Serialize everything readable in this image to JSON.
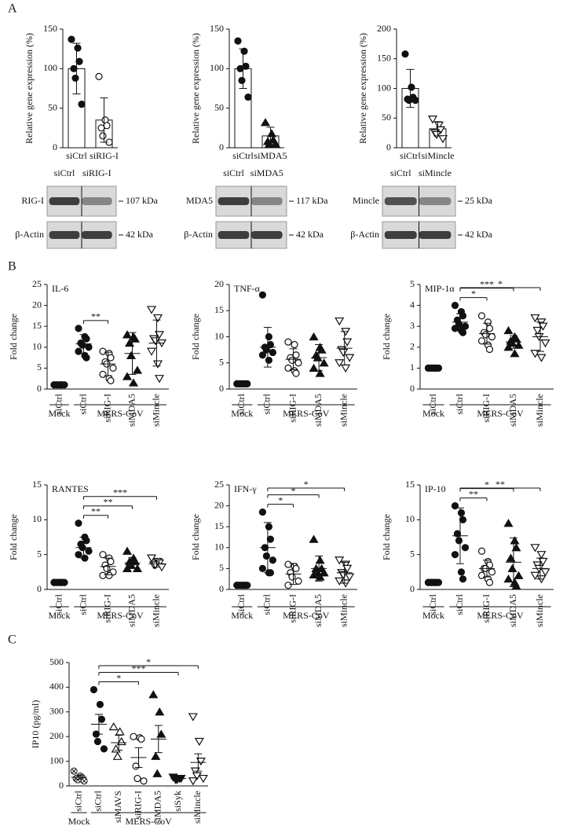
{
  "panel_labels": [
    "A",
    "B",
    "C"
  ],
  "blots": [
    {
      "lanes": [
        "siCtrl",
        "siRIG-I"
      ],
      "rows": [
        {
          "protein": "RIG-I",
          "size": "107 kDa"
        },
        {
          "protein": "β-Actin",
          "size": "42 kDa"
        }
      ]
    },
    {
      "lanes": [
        "siCtrl",
        "siMDA5"
      ],
      "rows": [
        {
          "protein": "MDA5",
          "size": "117 kDa"
        },
        {
          "protein": "β-Actin",
          "size": "42 kDa"
        }
      ]
    },
    {
      "lanes": [
        "siCtrl",
        "siMincle"
      ],
      "rows": [
        {
          "protein": "Mincle",
          "size": "25 kDa"
        },
        {
          "protein": "β-Actin",
          "size": "42 kDa"
        }
      ]
    }
  ],
  "chart_data": [
    {
      "type": "bar",
      "y_label": "Relative gene expression (%)",
      "ylim": [
        0,
        150
      ],
      "yticks": [
        0,
        50,
        100,
        150
      ],
      "categories": [
        "siCtrl",
        "siRIG-I"
      ],
      "markers": [
        "circle-filled",
        "circle-open"
      ],
      "points": [
        [
          137,
          126,
          109,
          100,
          88,
          55
        ],
        [
          90,
          35,
          28,
          25,
          15,
          7
        ]
      ],
      "means": [
        100,
        35
      ],
      "errors": [
        32,
        28
      ],
      "color": "#111111"
    },
    {
      "type": "bar",
      "y_label": "Relative gene expression (%)",
      "ylim": [
        0,
        150
      ],
      "yticks": [
        0,
        50,
        100,
        150
      ],
      "categories": [
        "siCtrl",
        "siMDA5"
      ],
      "markers": [
        "circle-filled",
        "triangle-filled"
      ],
      "points": [
        [
          135,
          122,
          103,
          100,
          85,
          64
        ],
        [
          32,
          18,
          10,
          8,
          5,
          5
        ]
      ],
      "means": [
        100,
        15
      ],
      "errors": [
        25,
        11
      ],
      "color": "#111111"
    },
    {
      "type": "bar",
      "y_label": "Relative gene expression (%)",
      "ylim": [
        0,
        200
      ],
      "yticks": [
        0,
        50,
        100,
        150,
        200
      ],
      "categories": [
        "siCtrl",
        "siMincle"
      ],
      "markers": [
        "circle-filled",
        "down-triangle-open"
      ],
      "points": [
        [
          158,
          102,
          85,
          82,
          80,
          80
        ],
        [
          48,
          38,
          30,
          25,
          22,
          15
        ]
      ],
      "means": [
        100,
        32
      ],
      "errors": [
        32,
        12
      ],
      "color": "#111111"
    },
    {
      "type": "dot",
      "title": "IL-6",
      "y_label": "Fold change",
      "ylim": [
        0,
        25
      ],
      "yticks": [
        0,
        5,
        10,
        15,
        20,
        25
      ],
      "categories": [
        "siCtrl",
        "siCtrl",
        "siRIG-I",
        "siMDA5",
        "siMincle"
      ],
      "markers": [
        "circle-filled",
        "circle-filled",
        "circle-open",
        "triangle-filled",
        "down-triangle-open"
      ],
      "points": [
        [
          1,
          1,
          1,
          1,
          1,
          1,
          1,
          1
        ],
        [
          14.5,
          12.5,
          12,
          11,
          10.5,
          10,
          9,
          8,
          7.5
        ],
        [
          9,
          8.5,
          7.5,
          6.5,
          6,
          5,
          3.5,
          2.5,
          2
        ],
        [
          13,
          12.5,
          12,
          11,
          8,
          4.5,
          3,
          1.5
        ],
        [
          19,
          17,
          13,
          12,
          11.5,
          11,
          9,
          6,
          2.5
        ]
      ],
      "means": [
        1,
        10.8,
        6,
        8.5,
        11
      ],
      "errors": [
        0.1,
        2.2,
        2.8,
        5,
        5.5
      ],
      "groups": [
        {
          "name": "Mock",
          "span": 1
        },
        {
          "name": "MERS-CoV",
          "span": 4
        }
      ],
      "significance": [
        {
          "label": "**",
          "from": 1,
          "to": 2
        }
      ],
      "color": "#111111"
    },
    {
      "type": "dot",
      "title": "TNF-α",
      "y_label": "Fold change",
      "ylim": [
        0,
        20
      ],
      "yticks": [
        0,
        5,
        10,
        15,
        20
      ],
      "categories": [
        "siCtrl",
        "siCtrl",
        "siRIG-I",
        "siMDA5",
        "siMincle"
      ],
      "markers": [
        "circle-filled",
        "circle-filled",
        "circle-open",
        "triangle-filled",
        "down-triangle-open"
      ],
      "points": [
        [
          1,
          1,
          1,
          1,
          1,
          1,
          1,
          1
        ],
        [
          18,
          10,
          8.5,
          8,
          7.5,
          7,
          6.5,
          5.5
        ],
        [
          9,
          8.5,
          6.5,
          6,
          5.5,
          5,
          4,
          3.5,
          3
        ],
        [
          10,
          8,
          7.5,
          6.5,
          6,
          5,
          4,
          3
        ],
        [
          13,
          11,
          9,
          7.5,
          7,
          6,
          5,
          4
        ]
      ],
      "means": [
        1,
        8,
        5.7,
        6,
        7.8
      ],
      "errors": [
        0.1,
        3.8,
        2,
        2.5,
        3.2
      ],
      "groups": [
        {
          "name": "Mock",
          "span": 1
        },
        {
          "name": "MERS-CoV",
          "span": 4
        }
      ],
      "significance": [],
      "color": "#111111"
    },
    {
      "type": "dot",
      "title": "MIP-1α",
      "y_label": "Fold change",
      "ylim": [
        0,
        5
      ],
      "yticks": [
        0,
        1,
        2,
        3,
        4,
        5
      ],
      "categories": [
        "siCtrl",
        "siCtrl",
        "siRIG-I",
        "siMDA5",
        "siMincle"
      ],
      "markers": [
        "circle-filled",
        "circle-filled",
        "circle-open",
        "triangle-filled",
        "down-triangle-open"
      ],
      "points": [
        [
          1,
          1,
          1,
          1,
          1,
          1,
          1,
          1
        ],
        [
          4,
          3.7,
          3.5,
          3.3,
          3.1,
          3,
          2.9,
          2.8,
          2.7
        ],
        [
          3.5,
          3.2,
          2.9,
          2.7,
          2.6,
          2.5,
          2.3,
          2.1,
          1.9
        ],
        [
          2.8,
          2.5,
          2.4,
          2.3,
          2.2,
          2.1,
          2,
          1.7
        ],
        [
          3.4,
          3.2,
          3,
          2.8,
          2.5,
          2.2,
          1.7,
          1.5
        ]
      ],
      "means": [
        1,
        3.2,
        2.65,
        2.25,
        2.5
      ],
      "errors": [
        0.02,
        0.4,
        0.5,
        0.3,
        0.7
      ],
      "groups": [
        {
          "name": "Mock",
          "span": 1
        },
        {
          "name": "MERS-CoV",
          "span": 4
        }
      ],
      "significance": [
        {
          "label": "*",
          "from": 1,
          "to": 2
        },
        {
          "label": "***",
          "from": 1,
          "to": 3
        },
        {
          "label": "*",
          "from": 1,
          "to": 4
        }
      ],
      "color": "#111111"
    },
    {
      "type": "dot",
      "title": "RANTES",
      "y_label": "Fold change",
      "ylim": [
        0,
        15
      ],
      "yticks": [
        0,
        5,
        10,
        15
      ],
      "categories": [
        "siCtrl",
        "siCtrl",
        "siRIG-I",
        "siMDA5",
        "siMincle"
      ],
      "markers": [
        "circle-filled",
        "circle-filled",
        "circle-open",
        "triangle-filled",
        "down-triangle-open"
      ],
      "points": [
        [
          1,
          1,
          1,
          1,
          1,
          1,
          1,
          1
        ],
        [
          9.5,
          7.5,
          7,
          6.5,
          6,
          5.5,
          5,
          4.5
        ],
        [
          5,
          4.5,
          4,
          3.5,
          3,
          2.5,
          2,
          2
        ],
        [
          5.5,
          4.5,
          4,
          4,
          3.5,
          3,
          3
        ],
        [
          4.5,
          4,
          3.8,
          3.5,
          3.5,
          3.2
        ]
      ],
      "means": [
        1,
        6,
        3.3,
        3.8,
        3.7
      ],
      "errors": [
        0.05,
        1.5,
        1.2,
        0.8,
        0.5
      ],
      "groups": [
        {
          "name": "Mock",
          "span": 1
        },
        {
          "name": "MERS-CoV",
          "span": 4
        }
      ],
      "significance": [
        {
          "label": "**",
          "from": 1,
          "to": 2
        },
        {
          "label": "**",
          "from": 1,
          "to": 3
        },
        {
          "label": "***",
          "from": 1,
          "to": 4
        }
      ],
      "color": "#111111"
    },
    {
      "type": "dot",
      "title": "IFN-γ",
      "y_label": "Fold change",
      "ylim": [
        0,
        25
      ],
      "yticks": [
        0,
        5,
        10,
        15,
        20,
        25
      ],
      "categories": [
        "siCtrl",
        "siCtrl",
        "siRIG-I",
        "siMDA5",
        "siMincle"
      ],
      "markers": [
        "circle-filled",
        "circle-filled",
        "circle-open",
        "triangle-filled",
        "down-triangle-open"
      ],
      "points": [
        [
          1,
          1,
          1,
          1,
          1,
          1,
          1,
          1
        ],
        [
          18.5,
          15,
          12,
          10,
          8,
          7,
          5,
          4,
          4
        ],
        [
          6,
          5.5,
          5,
          4,
          3,
          2,
          1
        ],
        [
          12,
          7,
          5,
          5,
          4,
          4,
          3.5,
          3
        ],
        [
          7,
          6,
          5,
          4,
          3.5,
          3,
          2,
          1.5
        ]
      ],
      "means": [
        1,
        10,
        3.7,
        5,
        4
      ],
      "errors": [
        0.05,
        6,
        2.5,
        3,
        2.5
      ],
      "groups": [
        {
          "name": "Mock",
          "span": 1
        },
        {
          "name": "MERS-CoV",
          "span": 4
        }
      ],
      "significance": [
        {
          "label": "*",
          "from": 1,
          "to": 2
        },
        {
          "label": "*",
          "from": 1,
          "to": 3
        },
        {
          "label": "*",
          "from": 1,
          "to": 4
        }
      ],
      "color": "#111111"
    },
    {
      "type": "dot",
      "title": "IP-10",
      "y_label": "Fold change",
      "ylim": [
        0,
        15
      ],
      "yticks": [
        0,
        5,
        10,
        15
      ],
      "categories": [
        "siCtrl",
        "siCtrl",
        "siRIG-I",
        "siMDA5",
        "siMincle"
      ],
      "markers": [
        "circle-filled",
        "circle-filled",
        "circle-open",
        "triangle-filled",
        "down-triangle-open"
      ],
      "points": [
        [
          1,
          1,
          1,
          1,
          1,
          1,
          1,
          1
        ],
        [
          12,
          11,
          10,
          8,
          7,
          6,
          5,
          2.5,
          1.5
        ],
        [
          5.5,
          4,
          3.5,
          3,
          3,
          2.5,
          2,
          1.5,
          1
        ],
        [
          9.5,
          7,
          6,
          4.5,
          3,
          2,
          1.5,
          1,
          0.5
        ],
        [
          6,
          5,
          4,
          3.5,
          3,
          2.5,
          2,
          1.5
        ]
      ],
      "means": [
        1,
        7.7,
        3,
        3.9,
        3
      ],
      "errors": [
        0.05,
        4,
        1.2,
        3.5,
        1.5
      ],
      "groups": [
        {
          "name": "Mock",
          "span": 1
        },
        {
          "name": "MERS-CoV",
          "span": 4
        }
      ],
      "significance": [
        {
          "label": "**",
          "from": 1,
          "to": 2
        },
        {
          "label": "*",
          "from": 1,
          "to": 3
        },
        {
          "label": "**",
          "from": 1,
          "to": 4
        }
      ],
      "color": "#111111"
    },
    {
      "type": "dot",
      "y_label": "IP10 (pg/ml)",
      "ylim": [
        0,
        500
      ],
      "yticks": [
        0,
        100,
        200,
        300,
        400,
        500
      ],
      "categories": [
        "siCtrl",
        "siCtrl",
        "siMAVS",
        "siRIG-I",
        "siMDA5",
        "siSyk",
        "siMincle"
      ],
      "markers": [
        "circle-crossed",
        "circle-filled",
        "triangle-open",
        "circle-open",
        "triangle-filled",
        "down-triangle-filled",
        "down-triangle-open"
      ],
      "points": [
        [
          60,
          40,
          35,
          30,
          25,
          20
        ],
        [
          390,
          330,
          270,
          210,
          180,
          150
        ],
        [
          240,
          220,
          180,
          150,
          120
        ],
        [
          200,
          195,
          190,
          80,
          30,
          20
        ],
        [
          370,
          300,
          210,
          120,
          50
        ],
        [
          35,
          30,
          30,
          25,
          25
        ],
        [
          280,
          180,
          100,
          60,
          40,
          30,
          20
        ]
      ],
      "means": [
        35,
        250,
        175,
        115,
        190,
        30,
        95
      ],
      "errors": [
        8,
        40,
        30,
        40,
        55,
        3,
        35
      ],
      "groups": [
        {
          "name": "Mock",
          "span": 1
        },
        {
          "name": "MERS-CoV",
          "span": 6
        }
      ],
      "significance": [
        {
          "label": "*",
          "from": 1,
          "to": 3
        },
        {
          "label": "***",
          "from": 1,
          "to": 5
        },
        {
          "label": "*",
          "from": 1,
          "to": 6
        }
      ],
      "color": "#111111"
    }
  ]
}
